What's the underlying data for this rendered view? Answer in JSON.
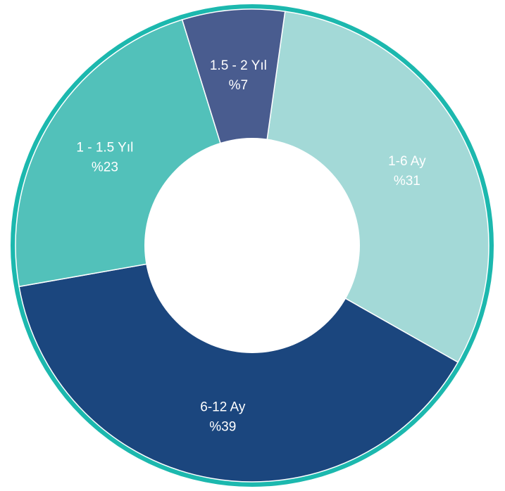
{
  "chart_data": {
    "type": "donut",
    "title": "",
    "slices": [
      {
        "category": "1-6 Ay",
        "value": 31,
        "value_label": "%31",
        "color": "#A3D9D7"
      },
      {
        "category": "6-12 Ay",
        "value": 39,
        "value_label": "%39",
        "color": "#1B467E"
      },
      {
        "category": "1 - 1.5 Yıl",
        "value": 23,
        "value_label": "%23",
        "color": "#52C1BA"
      },
      {
        "category": "1.5 - 2 Yıl",
        "value": 7,
        "value_label": "%7",
        "color": "#495C8F"
      }
    ],
    "ring_color": "#1CB8AE",
    "legend": "none"
  }
}
